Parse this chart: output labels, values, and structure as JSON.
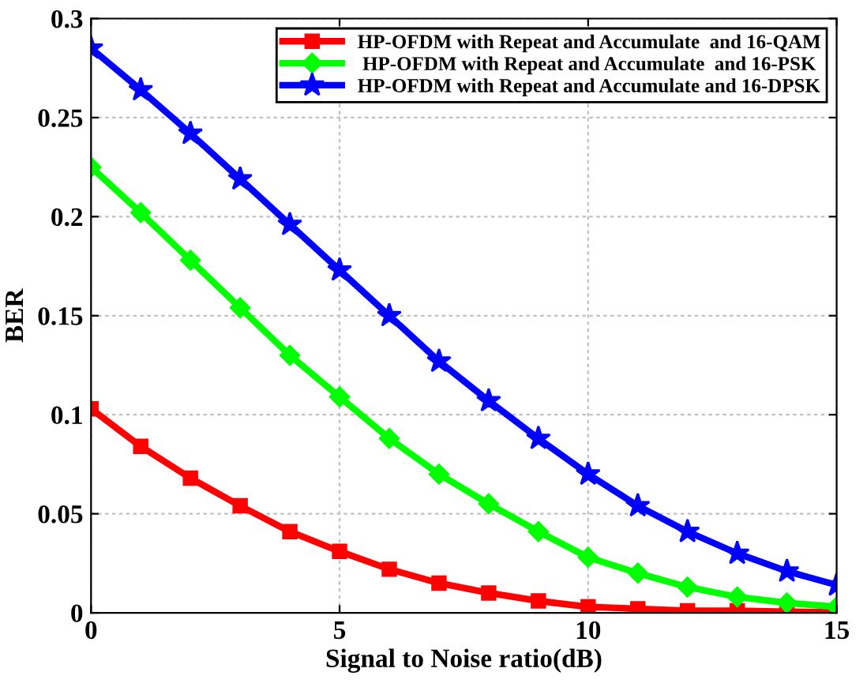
{
  "chart_data": {
    "type": "line",
    "xlabel": "Signal to Noise ratio(dB)",
    "ylabel": "BER",
    "x": [
      0,
      1,
      2,
      3,
      4,
      5,
      6,
      7,
      8,
      9,
      10,
      11,
      12,
      13,
      14,
      15
    ],
    "series": [
      {
        "name": "HP-OFDM with Repeat and Accumulate  and 16-QAM",
        "color": "#ff0000",
        "marker": "square",
        "values": [
          0.103,
          0.084,
          0.068,
          0.054,
          0.041,
          0.031,
          0.022,
          0.015,
          0.01,
          0.006,
          0.003,
          0.002,
          0.001,
          0.001,
          0.0005,
          0.0003
        ]
      },
      {
        "name": " HP-OFDM with Repeat and Accumulate  and 16-PSK",
        "color": "#00ff00",
        "marker": "diamond",
        "values": [
          0.225,
          0.202,
          0.178,
          0.154,
          0.13,
          0.109,
          0.088,
          0.07,
          0.055,
          0.041,
          0.028,
          0.02,
          0.013,
          0.008,
          0.005,
          0.003
        ]
      },
      {
        "name": "HP-OFDM with Repeat and Accumulate and 16-DPSK",
        "color": "#0000ff",
        "marker": "star",
        "values": [
          0.285,
          0.264,
          0.242,
          0.219,
          0.196,
          0.173,
          0.15,
          0.127,
          0.107,
          0.088,
          0.07,
          0.054,
          0.041,
          0.03,
          0.021,
          0.014
        ]
      }
    ],
    "xlim": [
      0,
      15
    ],
    "xticks": [
      0,
      5,
      10,
      15
    ],
    "ylim": [
      0,
      0.3
    ],
    "yticks": [
      0,
      0.05,
      0.1,
      0.15,
      0.2,
      0.25,
      0.3
    ],
    "grid": true,
    "legend": "top right",
    "line_style": "solid"
  }
}
